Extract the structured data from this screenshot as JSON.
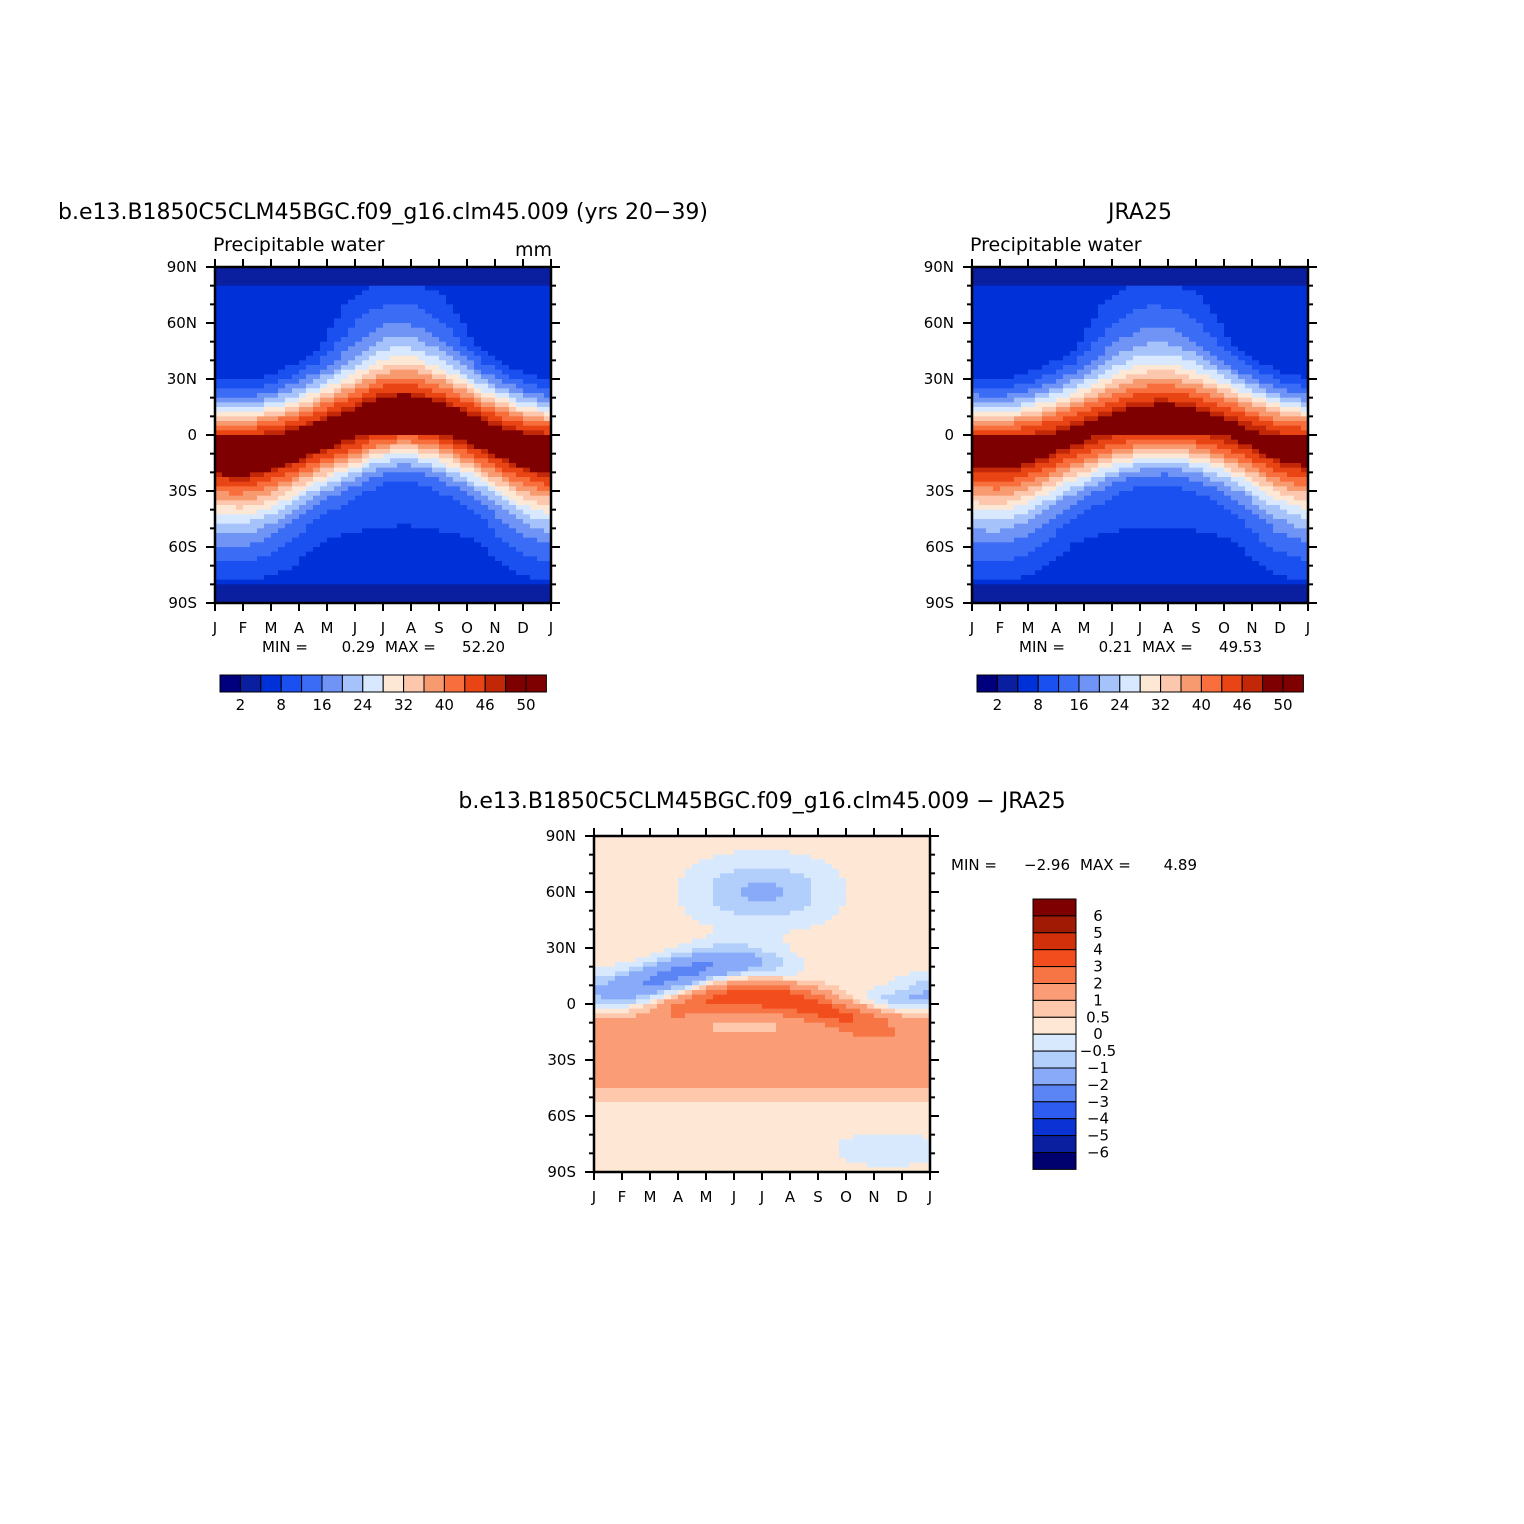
{
  "chart_data": [
    {
      "type": "heatmap",
      "title": "b.e13.B1850C5CLM45BGC.f09_g16.clm45.009 (yrs 20−39)",
      "subtitle": "Precipitable water",
      "units": "mm",
      "x_tick_labels": [
        "J",
        "F",
        "M",
        "A",
        "M",
        "J",
        "J",
        "A",
        "S",
        "O",
        "N",
        "D",
        "J"
      ],
      "y_tick_labels": [
        "90N",
        "60N",
        "30N",
        "0",
        "30S",
        "60S",
        "90S"
      ],
      "stats_text": {
        "min_label": "MIN =",
        "min": "0.29",
        "max_label": "MAX =",
        "max": "52.20"
      },
      "colorbar_labels": [
        "2",
        "8",
        "16",
        "24",
        "32",
        "40",
        "46",
        "50"
      ],
      "field": {
        "equator_peak": 52.2,
        "polar_min": 0.29,
        "itcz_lat_by_month": [
          -5,
          -6,
          -5,
          -3,
          0,
          3,
          7,
          8,
          6,
          3,
          -1,
          -4,
          -5
        ]
      }
    },
    {
      "type": "heatmap",
      "title": "JRA25",
      "subtitle": "Precipitable water",
      "x_tick_labels": [
        "J",
        "F",
        "M",
        "A",
        "M",
        "J",
        "J",
        "A",
        "S",
        "O",
        "N",
        "D",
        "J"
      ],
      "y_tick_labels": [
        "90N",
        "60N",
        "30N",
        "0",
        "30S",
        "60S",
        "90S"
      ],
      "stats_text": {
        "min_label": "MIN =",
        "min": "0.21",
        "max_label": "MAX =",
        "max": "49.53"
      },
      "colorbar_labels": [
        "2",
        "8",
        "16",
        "24",
        "32",
        "40",
        "46",
        "50"
      ],
      "field": {
        "equator_peak": 49.53,
        "polar_min": 0.21,
        "itcz_lat_by_month": [
          -4,
          -5,
          -4,
          -2,
          0,
          3,
          5,
          6,
          5,
          3,
          0,
          -3,
          -4
        ]
      }
    },
    {
      "type": "heatmap",
      "title": "b.e13.B1850C5CLM45BGC.f09_g16.clm45.009 − JRA25",
      "x_tick_labels": [
        "J",
        "F",
        "M",
        "A",
        "M",
        "J",
        "J",
        "A",
        "S",
        "O",
        "N",
        "D",
        "J"
      ],
      "y_tick_labels": [
        "90N",
        "60N",
        "30N",
        "0",
        "30S",
        "60S",
        "90S"
      ],
      "stats_text": {
        "min_label": "MIN =",
        "min": "−2.96",
        "max_label": "MAX =",
        "max": "4.89"
      },
      "colorbar_labels": [
        "6",
        "5",
        "4",
        "3",
        "2",
        "1",
        "0.5",
        "0",
        "−0.5",
        "−1",
        "−2",
        "−3",
        "−4",
        "−5",
        "−6"
      ],
      "field": {
        "min": -2.96,
        "max": 4.89
      }
    }
  ],
  "colors": {
    "abs_palette": [
      "#00007f",
      "#0a1fa0",
      "#0030d8",
      "#1a4ff0",
      "#3a6cf5",
      "#6f94f6",
      "#a6c2fb",
      "#d8e8fe",
      "#fde8d6",
      "#fcc7ac",
      "#f89a70",
      "#f86e3c",
      "#e84414",
      "#c22807",
      "#7f0000"
    ],
    "diff_palette": [
      "#7f0000",
      "#a01a04",
      "#d1300b",
      "#f24d1c",
      "#f77544",
      "#fa9c75",
      "#fdc8ab",
      "#fee7d5",
      "#d8e9fe",
      "#b2cffc",
      "#88aaf8",
      "#5b84f4",
      "#2f5cf0",
      "#0a32d4",
      "#0a1fa0",
      "#00006e"
    ]
  }
}
